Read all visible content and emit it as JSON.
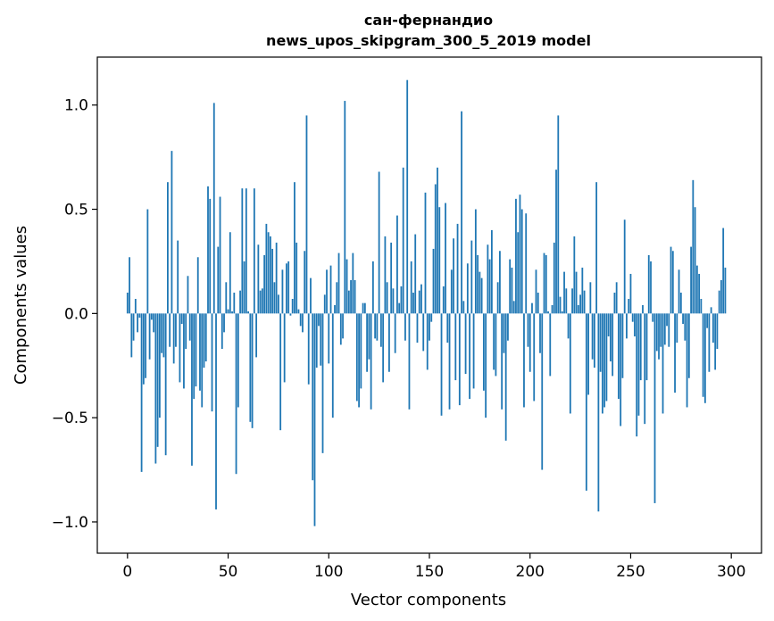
{
  "chart_data": {
    "type": "bar",
    "title": "сан-фернандио",
    "subtitle": "news_upos_skipgram_300_5_2019 model",
    "xlabel": "Vector components",
    "ylabel": "Components values",
    "xlim": [
      -15,
      315
    ],
    "ylim": [
      -1.15,
      1.23
    ],
    "xticks": [
      0,
      50,
      100,
      150,
      200,
      250,
      300
    ],
    "xtick_labels": [
      "0",
      "50",
      "100",
      "150",
      "200",
      "250",
      "300"
    ],
    "yticks": [
      -1.0,
      -0.5,
      0.0,
      0.5,
      1.0
    ],
    "ytick_labels": [
      "−1.0",
      "−0.5",
      "0.0",
      "0.5",
      "1.0"
    ],
    "bar_color": "#1f77b4",
    "grid": false,
    "values": [
      0.1,
      0.27,
      -0.21,
      -0.13,
      0.07,
      -0.09,
      -0.02,
      -0.76,
      -0.34,
      -0.31,
      0.5,
      -0.22,
      -0.03,
      -0.09,
      -0.72,
      -0.64,
      -0.5,
      -0.19,
      -0.21,
      -0.68,
      0.63,
      -0.16,
      0.78,
      -0.24,
      -0.16,
      0.35,
      -0.33,
      -0.05,
      -0.36,
      -0.17,
      0.18,
      -0.13,
      -0.73,
      -0.41,
      -0.35,
      0.27,
      -0.37,
      -0.45,
      -0.26,
      -0.23,
      0.61,
      0.55,
      -0.47,
      1.01,
      -0.94,
      0.32,
      0.56,
      -0.17,
      -0.09,
      0.15,
      0.02,
      0.39,
      0.01,
      0.1,
      -0.77,
      -0.45,
      0.11,
      0.6,
      0.25,
      0.6,
      0.01,
      -0.52,
      -0.55,
      0.6,
      -0.21,
      0.33,
      0.11,
      0.12,
      0.28,
      0.43,
      0.39,
      0.37,
      0.31,
      0.15,
      0.34,
      0.09,
      -0.56,
      0.21,
      -0.33,
      0.24,
      0.25,
      -0.01,
      0.07,
      0.63,
      0.34,
      0.02,
      -0.06,
      -0.09,
      0.3,
      0.95,
      -0.34,
      0.17,
      -0.8,
      -1.02,
      -0.26,
      -0.06,
      -0.25,
      -0.67,
      0.09,
      0.21,
      -0.24,
      0.23,
      -0.5,
      0.04,
      0.15,
      0.29,
      -0.15,
      -0.12,
      1.02,
      0.26,
      0.11,
      0.16,
      0.29,
      0.16,
      -0.42,
      -0.45,
      -0.36,
      0.05,
      0.05,
      -0.28,
      -0.22,
      -0.46,
      0.25,
      -0.12,
      -0.13,
      0.68,
      -0.16,
      -0.33,
      0.37,
      0.15,
      -0.28,
      0.34,
      0.12,
      -0.19,
      0.47,
      0.05,
      0.13,
      0.7,
      -0.13,
      1.12,
      -0.46,
      0.25,
      0.1,
      0.38,
      -0.14,
      0.11,
      0.14,
      -0.18,
      0.58,
      -0.27,
      -0.13,
      -0.04,
      0.31,
      0.62,
      0.7,
      0.51,
      -0.49,
      0.13,
      0.53,
      -0.14,
      -0.46,
      0.21,
      0.36,
      -0.32,
      0.43,
      -0.44,
      0.97,
      0.06,
      -0.29,
      0.24,
      -0.41,
      0.35,
      -0.36,
      0.5,
      0.28,
      0.2,
      0.17,
      -0.37,
      -0.5,
      0.33,
      0.26,
      0.4,
      -0.27,
      -0.3,
      0.15,
      0.3,
      -0.46,
      -0.19,
      -0.61,
      -0.13,
      0.26,
      0.22,
      0.06,
      0.55,
      0.39,
      0.57,
      0.5,
      -0.45,
      0.48,
      -0.16,
      -0.28,
      0.05,
      -0.42,
      0.21,
      0.1,
      -0.19,
      -0.75,
      0.29,
      0.28,
      0.01,
      -0.3,
      0.04,
      0.34,
      0.69,
      0.95,
      0.08,
      0.01,
      0.2,
      0.12,
      -0.12,
      -0.48,
      0.12,
      0.37,
      0.2,
      0.04,
      0.09,
      0.22,
      0.11,
      -0.85,
      -0.39,
      0.15,
      -0.22,
      -0.26,
      0.63,
      -0.95,
      -0.28,
      -0.48,
      -0.45,
      -0.42,
      -0.11,
      -0.23,
      -0.3,
      0.1,
      0.15,
      -0.41,
      -0.54,
      -0.31,
      0.45,
      -0.12,
      0.07,
      0.19,
      -0.04,
      -0.11,
      -0.59,
      -0.49,
      -0.32,
      0.04,
      -0.53,
      -0.32,
      0.28,
      0.25,
      -0.04,
      -0.91,
      -0.18,
      -0.22,
      -0.16,
      -0.48,
      -0.15,
      -0.06,
      -0.16,
      0.32,
      0.3,
      -0.38,
      -0.14,
      0.21,
      0.1,
      -0.05,
      -0.13,
      -0.45,
      -0.31,
      0.32,
      0.64,
      0.51,
      0.23,
      0.19,
      0.07,
      -0.4,
      -0.43,
      -0.07,
      -0.28,
      0.03,
      -0.14,
      -0.27,
      -0.17,
      0.11,
      0.16,
      0.41,
      0.22
    ]
  }
}
